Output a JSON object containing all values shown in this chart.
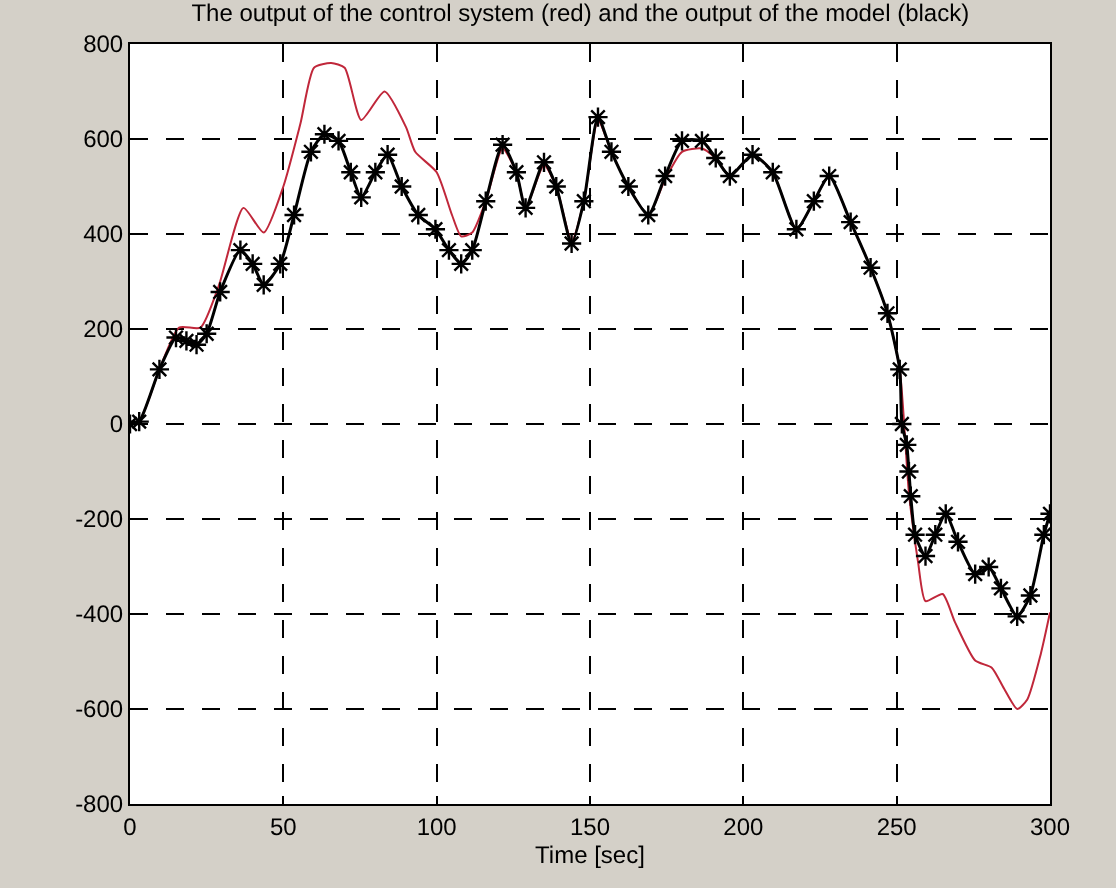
{
  "chart_data": {
    "type": "line",
    "title": "The output of the control system (red) and the output of the model (black)",
    "xlabel": "Time [sec]",
    "xlim": [
      0,
      300
    ],
    "xticks": [
      0,
      50,
      100,
      150,
      200,
      250,
      300
    ],
    "ylim": [
      -800,
      800
    ],
    "yticks": [
      -800,
      -600,
      -400,
      -200,
      0,
      200,
      400,
      600,
      800
    ],
    "grid": true,
    "series": [
      {
        "color": "#c0273a",
        "marker": "none",
        "x": [
          0,
          3,
          9.6,
          16,
          23,
          29,
          37,
          43.6,
          50,
          55.6,
          60,
          65.6,
          70,
          75.4,
          83,
          90,
          93,
          100,
          105,
          108,
          111.6,
          116,
          121.5,
          126,
          129,
          135,
          139,
          144,
          148,
          152.6,
          157,
          162.5,
          169,
          174.5,
          180,
          186.5,
          191,
          195.6,
          203,
          209.6,
          217.3,
          223,
          228,
          235,
          241.5,
          247,
          251,
          254,
          257,
          259.4,
          265,
          269,
          275.6,
          281,
          285,
          289.3,
          292.6,
          297,
          300
        ],
        "values": [
          0,
          5,
          115,
          203,
          203,
          292,
          455,
          403,
          500,
          633,
          750,
          760,
          750,
          640,
          700,
          625,
          573,
          530,
          440,
          395,
          403,
          469,
          580,
          530,
          455,
          545,
          500,
          385,
          469,
          640,
          573,
          500,
          440,
          515,
          573,
          580,
          560,
          522,
          567,
          530,
          410,
          469,
          522,
          425,
          329,
          233,
          115,
          -145,
          -292,
          -373,
          -358,
          -417,
          -498,
          -513,
          -557,
          -600,
          -580,
          -484,
          -397
        ]
      },
      {
        "color": "#000000",
        "marker": "cross",
        "x": [
          0,
          3,
          9.6,
          15,
          18.4,
          21.7,
          25,
          29.4,
          36,
          40,
          43.6,
          49,
          53.5,
          59,
          63.4,
          68,
          72,
          75.4,
          80,
          84,
          88.6,
          94,
          99.6,
          104,
          108,
          111.6,
          116,
          121.5,
          126,
          129,
          135,
          139,
          144,
          148,
          152.6,
          157,
          162.5,
          169,
          174.5,
          180,
          186.5,
          191,
          195.6,
          203,
          209.6,
          217.3,
          223,
          228,
          235,
          241.5,
          247,
          251,
          251.7,
          253.3,
          254,
          254.6,
          256,
          259.4,
          262.6,
          266,
          270,
          275.6,
          280,
          284,
          289.3,
          293.6,
          298,
          300
        ],
        "values": [
          0,
          5,
          115,
          182,
          175,
          167,
          190,
          278,
          366,
          337,
          293,
          337,
          440,
          573,
          610,
          596,
          530,
          477,
          530,
          567,
          500,
          440,
          410,
          366,
          337,
          366,
          469,
          588,
          530,
          455,
          551,
          500,
          380,
          469,
          646,
          573,
          500,
          440,
          522,
          596,
          596,
          560,
          522,
          567,
          530,
          410,
          469,
          522,
          425,
          329,
          233,
          115,
          0,
          -44,
          -100,
          -152,
          -233,
          -278,
          -233,
          -189,
          -248,
          -316,
          -301,
          -346,
          -405,
          -361,
          -233,
          -189
        ]
      }
    ]
  }
}
